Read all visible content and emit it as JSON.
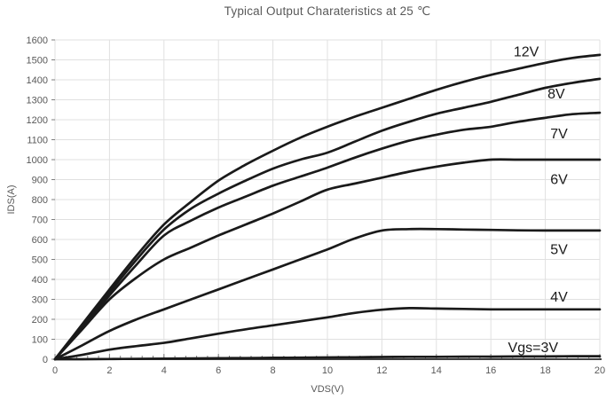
{
  "title": "Typical Output Charateristics at 25 ℃",
  "chart_data": {
    "type": "line",
    "title": "Typical Output Charateristics at 25 ℃",
    "xlabel": "VDS(V)",
    "ylabel": "IDS(A)",
    "xlim": [
      0,
      20
    ],
    "ylim": [
      0,
      1600
    ],
    "x_tick_step": 2,
    "y_tick_step": 100,
    "x_minor_tick_step": 0.4,
    "grid": true,
    "legend_position": "labels-on-plot",
    "x": [
      0,
      1,
      2,
      3,
      4,
      5,
      6,
      7,
      8,
      9,
      10,
      11,
      12,
      13,
      14,
      15,
      16,
      17,
      18,
      19,
      20
    ],
    "series": [
      {
        "name": "Vgs=12V",
        "values": [
          0,
          175,
          350,
          520,
          675,
          790,
          895,
          975,
          1045,
          1110,
          1165,
          1215,
          1260,
          1305,
          1350,
          1390,
          1425,
          1455,
          1485,
          1510,
          1525
        ]
      },
      {
        "name": "Vgs=8V",
        "values": [
          0,
          170,
          335,
          500,
          650,
          755,
          830,
          895,
          955,
          1000,
          1035,
          1090,
          1145,
          1190,
          1230,
          1260,
          1290,
          1325,
          1360,
          1385,
          1405
        ]
      },
      {
        "name": "Vgs=7V",
        "values": [
          0,
          160,
          320,
          475,
          620,
          695,
          760,
          815,
          870,
          915,
          960,
          1010,
          1055,
          1095,
          1125,
          1150,
          1165,
          1190,
          1210,
          1228,
          1235
        ]
      },
      {
        "name": "Vgs=6V",
        "values": [
          0,
          150,
          300,
          410,
          500,
          560,
          620,
          675,
          730,
          790,
          850,
          880,
          910,
          940,
          965,
          985,
          1000,
          1000,
          1000,
          1000,
          1000
        ]
      },
      {
        "name": "Vgs=5V",
        "values": [
          0,
          70,
          142,
          200,
          250,
          300,
          350,
          400,
          450,
          500,
          550,
          605,
          645,
          652,
          652,
          650,
          648,
          646,
          645,
          645,
          645
        ]
      },
      {
        "name": "Vgs=4V",
        "values": [
          0,
          22,
          48,
          66,
          82,
          105,
          128,
          150,
          170,
          190,
          210,
          232,
          248,
          256,
          254,
          252,
          250,
          250,
          250,
          250,
          250
        ]
      },
      {
        "name": "Vgs=3V",
        "values": [
          0,
          0,
          1,
          2,
          3,
          4,
          5,
          6,
          7,
          8,
          9,
          10,
          11,
          12,
          12,
          13,
          13,
          14,
          14,
          15,
          15
        ]
      }
    ],
    "curve_labels": [
      {
        "text": "12V",
        "x": 17.3,
        "y": 1540
      },
      {
        "text": "8V",
        "x": 18.4,
        "y": 1330
      },
      {
        "text": "7V",
        "x": 18.5,
        "y": 1130
      },
      {
        "text": "6V",
        "x": 18.5,
        "y": 900
      },
      {
        "text": "5V",
        "x": 18.5,
        "y": 548
      },
      {
        "text": "4V",
        "x": 18.5,
        "y": 312
      },
      {
        "text": "Vgs=3V",
        "x": 17.55,
        "y": 58
      }
    ],
    "colors": {
      "curve": "#1a1a1a",
      "gridline": "#e0e0e0",
      "plot_border": "#d9d9d9",
      "axis_line": "#404040",
      "tick": "#7f7f7f",
      "tick_label": "#595959",
      "title": "#595959"
    }
  }
}
